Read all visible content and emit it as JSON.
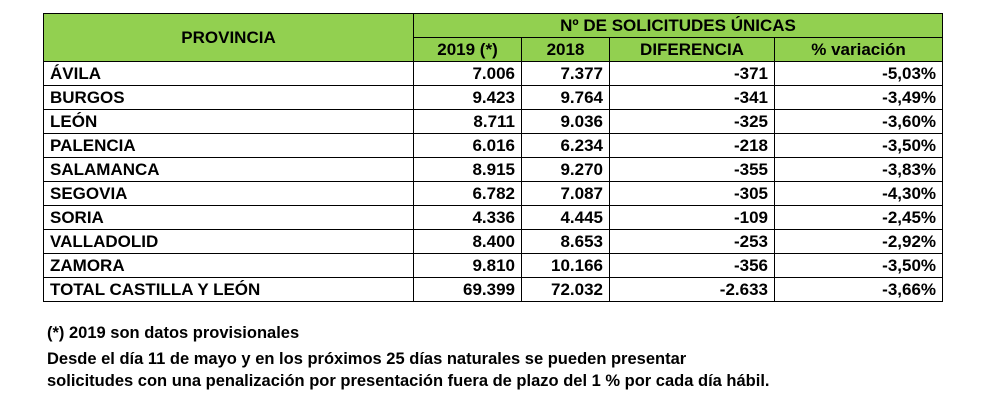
{
  "table": {
    "headers": {
      "provincia": "PROVINCIA",
      "group": "Nº DE SOLICITUDES  ÚNICAS",
      "col_2019": "2019 (*)",
      "col_2018": "2018",
      "col_diff": "DIFERENCIA",
      "col_var": "% variación"
    },
    "rows": [
      {
        "provincia": "ÁVILA",
        "y2019": "7.006",
        "y2018": "7.377",
        "diferencia": "-371",
        "variacion": "-5,03%"
      },
      {
        "provincia": "BURGOS",
        "y2019": "9.423",
        "y2018": "9.764",
        "diferencia": "-341",
        "variacion": "-3,49%"
      },
      {
        "provincia": "LEÓN",
        "y2019": "8.711",
        "y2018": "9.036",
        "diferencia": "-325",
        "variacion": "-3,60%"
      },
      {
        "provincia": "PALENCIA",
        "y2019": "6.016",
        "y2018": "6.234",
        "diferencia": "-218",
        "variacion": "-3,50%"
      },
      {
        "provincia": "SALAMANCA",
        "y2019": "8.915",
        "y2018": "9.270",
        "diferencia": "-355",
        "variacion": "-3,83%"
      },
      {
        "provincia": "SEGOVIA",
        "y2019": "6.782",
        "y2018": "7.087",
        "diferencia": "-305",
        "variacion": "-4,30%"
      },
      {
        "provincia": "SORIA",
        "y2019": "4.336",
        "y2018": "4.445",
        "diferencia": "-109",
        "variacion": "-2,45%"
      },
      {
        "provincia": "VALLADOLID",
        "y2019": "8.400",
        "y2018": "8.653",
        "diferencia": "-253",
        "variacion": "-2,92%"
      },
      {
        "provincia": "ZAMORA",
        "y2019": "9.810",
        "y2018": "10.166",
        "diferencia": "-356",
        "variacion": "-3,50%"
      }
    ],
    "total": {
      "provincia": "TOTAL CASTILLA Y LEÓN",
      "y2019": "69.399",
      "y2018": "72.032",
      "diferencia": "-2.633",
      "variacion": "-3,66%"
    }
  },
  "notes": {
    "provisional": "(*) 2019 son datos provisionales",
    "line1": "Desde el día 11 de mayo y en los próximos 25 días naturales se pueden presentar",
    "line2": "solicitudes con una penalización por presentación fuera de plazo del 1 % por cada día hábil."
  },
  "colors": {
    "header_background": "#92d050"
  }
}
